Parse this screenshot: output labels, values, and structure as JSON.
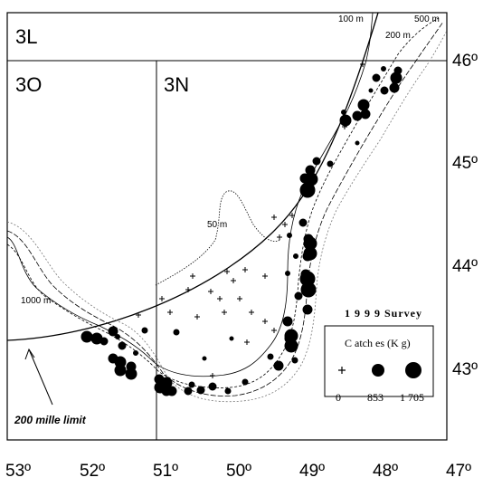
{
  "divisions": {
    "d3L": "3L",
    "d3O": "3O",
    "d3N": "3N"
  },
  "lat_labels": [
    "46º",
    "45º",
    "44º",
    "43º"
  ],
  "lon_labels": [
    "53º",
    "52º",
    "51º",
    "50º",
    "49º",
    "48º",
    "47º"
  ],
  "depth_labels": {
    "d100": "100 m",
    "d500": "500 m",
    "d200": "200 m",
    "d50": "50 m",
    "d1000": "1000 m"
  },
  "limit_label": "200 mille limit",
  "legend": {
    "title": "1 9 9 9 Survey",
    "subtitle": "C atch es (K g)",
    "values": [
      "0",
      "853",
      "1 705"
    ]
  }
}
